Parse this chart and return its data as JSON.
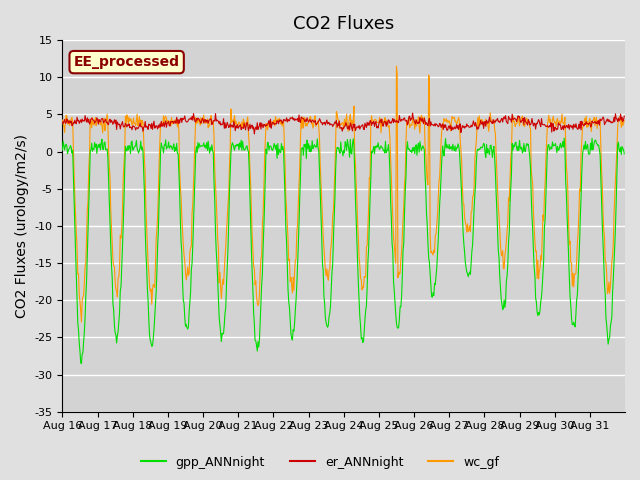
{
  "title": "CO2 Fluxes",
  "ylabel": "CO2 Fluxes (urology/m2/s)",
  "ylim": [
    -35,
    15
  ],
  "yticks": [
    -35,
    -30,
    -25,
    -20,
    -15,
    -10,
    -5,
    0,
    5,
    10,
    15
  ],
  "date_labels": [
    "Aug 16",
    "Aug 17",
    "Aug 18",
    "Aug 19",
    "Aug 20",
    "Aug 21",
    "Aug 22",
    "Aug 23",
    "Aug 24",
    "Aug 25",
    "Aug 26",
    "Aug 27",
    "Aug 28",
    "Aug 29",
    "Aug 30",
    "Aug 31"
  ],
  "background_color": "#e0e0e0",
  "plot_bg_color": "#d3d3d3",
  "grid_color": "#ffffff",
  "annotation_text": "EE_processed",
  "annotation_color": "#8b0000",
  "annotation_bg": "#ffffcc",
  "line_colors": {
    "gpp": "#00dd00",
    "er": "#cc0000",
    "wc": "#ff9900"
  },
  "legend_labels": [
    "gpp_ANNnight",
    "er_ANNnight",
    "wc_gf"
  ],
  "title_fontsize": 13,
  "label_fontsize": 10,
  "tick_fontsize": 8
}
